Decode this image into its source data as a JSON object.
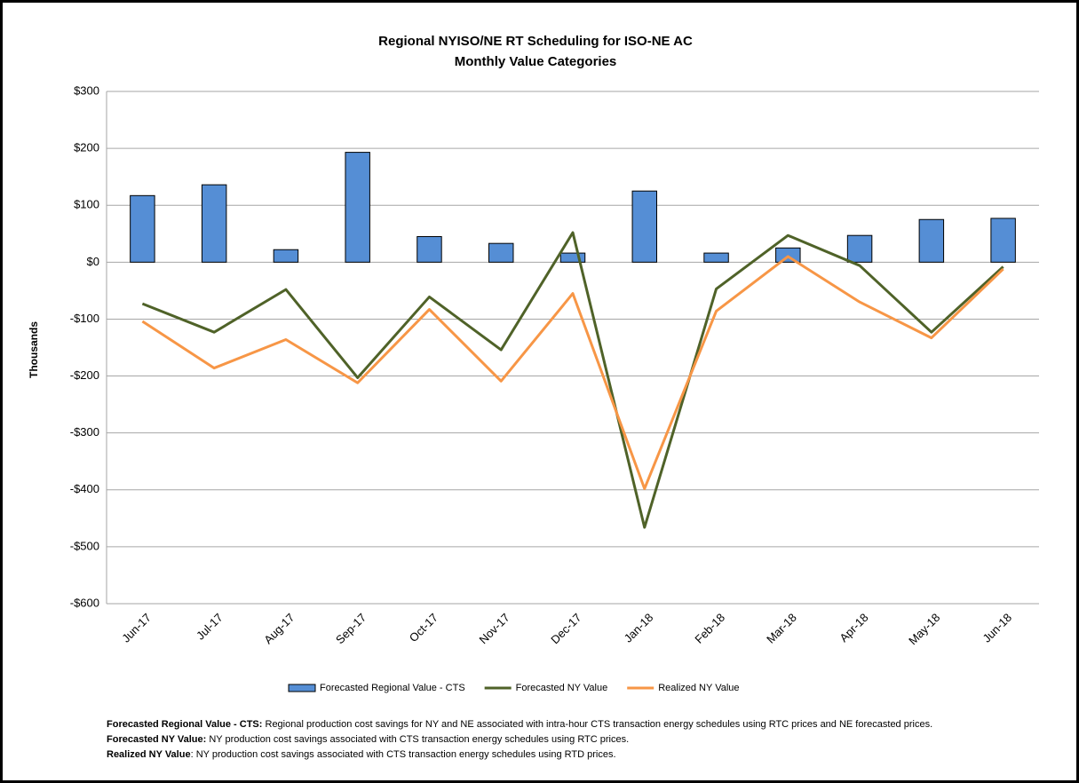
{
  "chart_data": {
    "type": "combo",
    "title": "Regional NYISO/NE RT Scheduling for ISO-NE AC",
    "subtitle": "Monthly Value Categories",
    "y_label": "Thousands",
    "categories": [
      "Jun-17",
      "Jul-17",
      "Aug-17",
      "Sep-17",
      "Oct-17",
      "Nov-17",
      "Dec-17",
      "Jan-18",
      "Feb-18",
      "Mar-18",
      "Apr-18",
      "May-18",
      "Jun-18"
    ],
    "series": [
      {
        "name": "Forecasted Regional Value - CTS",
        "type": "bar",
        "color": "#558ed5",
        "values": [
          117,
          136,
          22,
          193,
          45,
          33,
          16,
          125,
          16,
          25,
          47,
          75,
          77
        ]
      },
      {
        "name": "Forecasted NY Value",
        "type": "line",
        "color": "#4f6228",
        "values": [
          -73,
          -123,
          -48,
          -203,
          -61,
          -154,
          52,
          -466,
          -47,
          47,
          -6,
          -123,
          -8
        ]
      },
      {
        "name": "Realized NY Value",
        "type": "line",
        "color": "#f79646",
        "values": [
          -104,
          -186,
          -136,
          -212,
          -83,
          -209,
          -55,
          -398,
          -86,
          10,
          -70,
          -133,
          -12
        ]
      }
    ],
    "ylim": [
      -600,
      300
    ],
    "yticks": [
      {
        "value": -600,
        "label": "-$600"
      },
      {
        "value": -500,
        "label": "-$500"
      },
      {
        "value": -400,
        "label": "-$400"
      },
      {
        "value": -300,
        "label": "-$300"
      },
      {
        "value": -200,
        "label": "-$200"
      },
      {
        "value": -100,
        "label": "-$100"
      },
      {
        "value": 0,
        "label": "$0"
      },
      {
        "value": 100,
        "label": "$100"
      },
      {
        "value": 200,
        "label": "$200"
      },
      {
        "value": 300,
        "label": "$300"
      }
    ],
    "grid": true,
    "legend": "bottom",
    "notes": [
      {
        "term": "Forecasted Regional Value - CTS:",
        "text": " Regional production cost savings for NY and NE associated with intra-hour CTS transaction energy schedules using RTC prices and NE forecasted prices."
      },
      {
        "term": "Forecasted NY Value:",
        "text": " NY production cost savings associated with CTS transaction energy schedules using RTC prices."
      },
      {
        "term": "Realized NY Value",
        "text": ": NY production cost savings associated with CTS transaction energy schedules using RTD prices."
      }
    ]
  }
}
